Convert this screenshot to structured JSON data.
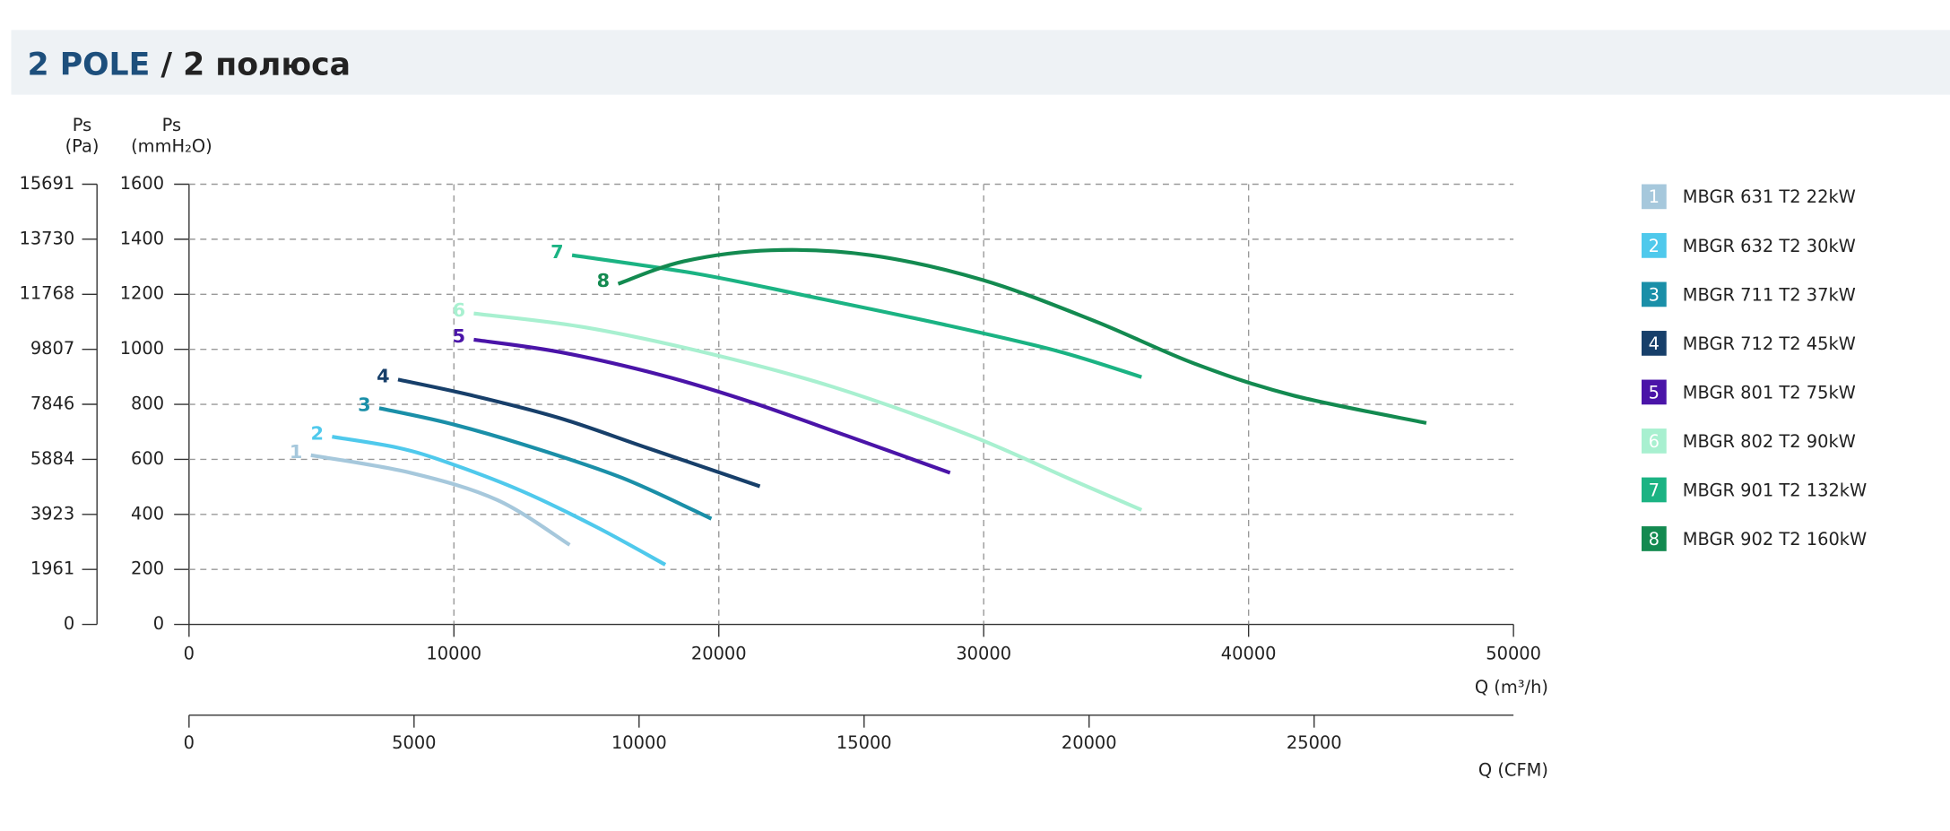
{
  "chart_data": {
    "type": "line",
    "title": [
      "2 POLE",
      "/ 2 полюса"
    ],
    "ylabel": [
      "Ps",
      "(mmH₂O)"
    ],
    "y2label": [
      "Ps",
      "(Pa)"
    ],
    "xlabel": "Q (m³/h)",
    "x2label": "Q (CFM)",
    "xlim": [
      0,
      50000
    ],
    "xticks": [
      0,
      10000,
      20000,
      30000,
      40000,
      50000
    ],
    "x2lim": [
      0,
      29430
    ],
    "x2ticks": [
      0,
      5000,
      10000,
      15000,
      20000,
      25000
    ],
    "ylim": [
      0,
      1600
    ],
    "yticks": [
      0,
      200,
      400,
      600,
      800,
      1000,
      1200,
      1400,
      1600
    ],
    "y2lim": [
      0,
      15691
    ],
    "y2ticks": [
      0,
      1961,
      3923,
      5884,
      7846,
      9807,
      11768,
      13730,
      15691
    ],
    "grid": true,
    "series": [
      {
        "name": "MBGR 631 T2 22kW",
        "label": "1",
        "color": "#a6c8dc",
        "x": [
          4600,
          8360,
          11640,
          14370
        ],
        "values": [
          615,
          551,
          452,
          289
        ]
      },
      {
        "name": "MBGR 632 T2 30kW",
        "label": "2",
        "color": "#4fc9ec",
        "x": [
          5400,
          7890,
          9770,
          12580,
          15400,
          17980
        ],
        "values": [
          682,
          642,
          588,
          484,
          353,
          217
        ]
      },
      {
        "name": "MBGR 711 T2 37kW",
        "label": "3",
        "color": "#1a8fa8",
        "x": [
          7180,
          9770,
          12580,
          16340,
          19720
        ],
        "values": [
          786,
          732,
          655,
          533,
          384
        ]
      },
      {
        "name": "MBGR 712 T2 45kW",
        "label": "4",
        "color": "#173f6a",
        "x": [
          7890,
          10700,
          13990,
          17280,
          21550
        ],
        "values": [
          890,
          832,
          750,
          642,
          502
        ]
      },
      {
        "name": "MBGR 801 T2 75kW",
        "label": "5",
        "color": "#4a14a8",
        "x": [
          10750,
          13990,
          17750,
          21030,
          24790,
          28730
        ],
        "values": [
          1035,
          990,
          908,
          814,
          687,
          551
        ]
      },
      {
        "name": "MBGR 802 T2 90kW",
        "label": "6",
        "color": "#a8f0d0",
        "x": [
          10750,
          14930,
          19620,
          24320,
          29480,
          33240,
          35960
        ],
        "values": [
          1130,
          1080,
          985,
          863,
          687,
          529,
          416
        ]
      },
      {
        "name": "MBGR 901 T2 132kW",
        "label": "7",
        "color": "#1bb383",
        "x": [
          14460,
          19150,
          23380,
          28540,
          32770,
          35960
        ],
        "values": [
          1342,
          1275,
          1193,
          1089,
          994,
          899
        ]
      },
      {
        "name": "MBGR 902 T2 160kW",
        "label": "8",
        "color": "#138a50",
        "x": [
          16200,
          18690,
          21970,
          25730,
          29950,
          34180,
          37930,
          41690,
          46710
        ],
        "values": [
          1238,
          1320,
          1360,
          1342,
          1252,
          1103,
          949,
          832,
          732
        ]
      }
    ]
  }
}
